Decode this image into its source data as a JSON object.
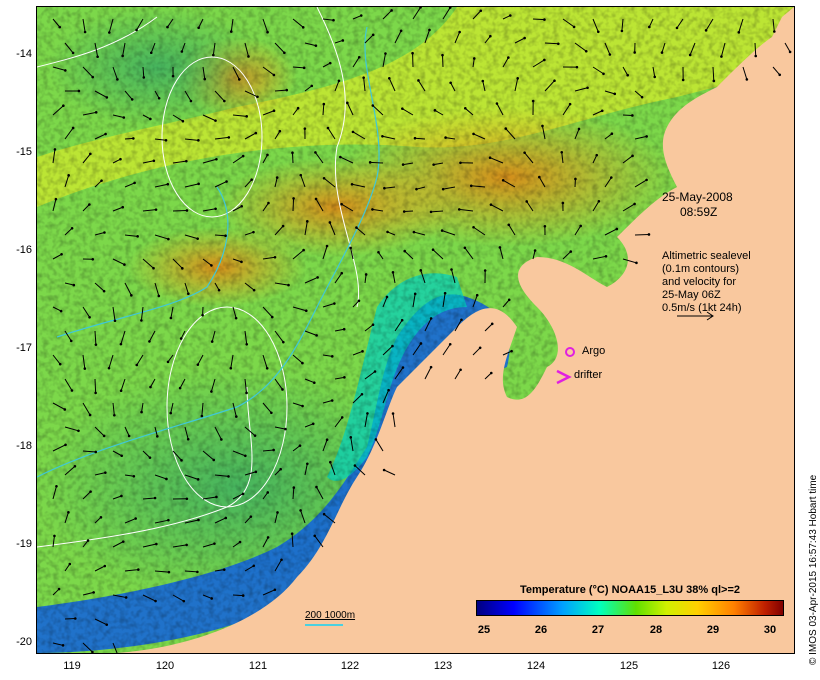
{
  "map": {
    "date_label": "25-May-2008",
    "time_label": "08:59Z",
    "legend_text": [
      "Altimetric sealevel",
      "(0.1m contours)",
      "and velocity for",
      "25-May 06Z",
      "0.5m/s (1kt 24h)"
    ],
    "argo_label": "Argo",
    "drifter_label": "drifter",
    "scale_label": "200  1000m",
    "credit": "© IMOS 03-Apr-2015 16:57:43 Hobart time",
    "y_ticks": [
      "-14",
      "-15",
      "-16",
      "-17",
      "-18",
      "-19",
      "-20"
    ],
    "x_ticks": [
      "119",
      "120",
      "121",
      "122",
      "123",
      "124",
      "125",
      "126"
    ],
    "colorbar": {
      "title": "Temperature (°C) NOAA15_L3U 38% ql>=2",
      "ticks": [
        "25",
        "26",
        "27",
        "28",
        "29",
        "30"
      ],
      "range": [
        25,
        30
      ]
    },
    "colors": {
      "land": "#f9c89e",
      "contour": "#ffffff",
      "isobath": "#40c8d8",
      "argo": "#e020e0",
      "drifter": "#e020e0"
    }
  }
}
